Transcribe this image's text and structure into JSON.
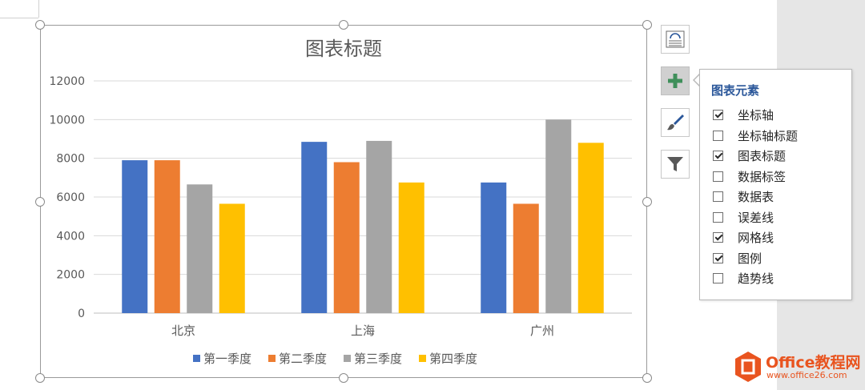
{
  "chart_data": {
    "type": "bar",
    "title": "图表标题",
    "categories": [
      "北京",
      "上海",
      "广州"
    ],
    "series": [
      {
        "name": "第一季度",
        "color": "#4472c4",
        "values": [
          7900,
          8850,
          6750
        ]
      },
      {
        "name": "第二季度",
        "color": "#ed7d31",
        "values": [
          7900,
          7800,
          5650
        ]
      },
      {
        "name": "第三季度",
        "color": "#a5a5a5",
        "values": [
          6650,
          8900,
          10000
        ]
      },
      {
        "name": "第四季度",
        "color": "#ffc000",
        "values": [
          5650,
          6750,
          8800
        ]
      }
    ],
    "ylim": [
      0,
      12000
    ],
    "yticks": [
      "0",
      "2000",
      "4000",
      "6000",
      "8000",
      "10000",
      "12000"
    ],
    "yticks_values": [
      0,
      2000,
      4000,
      6000,
      8000,
      10000,
      12000
    ],
    "grid": true,
    "legend": "bottom"
  },
  "side_buttons": [
    {
      "icon": "layout-options-icon"
    },
    {
      "icon": "plus-icon"
    },
    {
      "icon": "paintbrush-icon"
    },
    {
      "icon": "filter-icon"
    }
  ],
  "elements_panel": {
    "title": "图表元素",
    "items": [
      {
        "label": "坐标轴",
        "checked": true
      },
      {
        "label": "坐标轴标题",
        "checked": false
      },
      {
        "label": "图表标题",
        "checked": true
      },
      {
        "label": "数据标签",
        "checked": false
      },
      {
        "label": "数据表",
        "checked": false
      },
      {
        "label": "误差线",
        "checked": false
      },
      {
        "label": "网格线",
        "checked": true
      },
      {
        "label": "图例",
        "checked": true
      },
      {
        "label": "趋势线",
        "checked": false
      }
    ]
  },
  "watermark": {
    "brand": "Office教程网",
    "url": "www.office26.com",
    "color": "#e9541f"
  }
}
